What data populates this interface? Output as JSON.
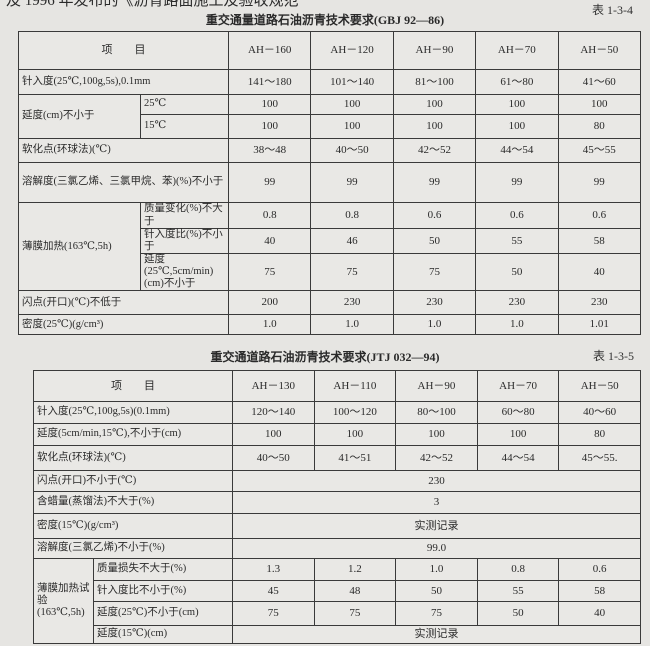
{
  "intro_text": "及 1996 年发布的《沥青路面施工及验收规范",
  "table1": {
    "number": "表 1-3-4",
    "title": "重交通量道路石油沥青技术要求(GBJ 92—86)",
    "item_header": "项　　目",
    "grades": [
      "AH－160",
      "AH－120",
      "AH－90",
      "AH－70",
      "AH－50"
    ],
    "rows": [
      {
        "label": "针入度(25℃,100g,5s),0.1mm",
        "values": [
          "141～180",
          "101～140",
          "81～100",
          "61～80",
          "41～60"
        ]
      },
      {
        "label": "延度(cm)不小于",
        "items": [
          {
            "label": "25℃",
            "values": [
              "100",
              "100",
              "100",
              "100",
              "100"
            ]
          },
          {
            "label": "15℃",
            "values": [
              "100",
              "100",
              "100",
              "100",
              "80"
            ]
          }
        ]
      },
      {
        "label": "软化点(环球法)(℃)",
        "values": [
          "38～48",
          "40～50",
          "42～52",
          "44～54",
          "45～55"
        ]
      },
      {
        "label": "溶解度(三氯乙烯、三氯甲烷、苯)(%)不小于",
        "values": [
          "99",
          "99",
          "99",
          "99",
          "99"
        ]
      },
      {
        "label": "薄膜加热(163℃,5h)",
        "items": [
          {
            "label": "质量变化(%)不大于",
            "values": [
              "0.8",
              "0.8",
              "0.6",
              "0.6",
              "0.6"
            ]
          },
          {
            "label": "针入度比(%)不小于",
            "values": [
              "40",
              "46",
              "50",
              "55",
              "58"
            ]
          },
          {
            "label": "延度(25℃,5cm/min)(cm)不小于",
            "values": [
              "75",
              "75",
              "75",
              "50",
              "40"
            ]
          }
        ]
      },
      {
        "label": "闪点(开口)(℃)不低于",
        "values": [
          "200",
          "230",
          "230",
          "230",
          "230"
        ]
      },
      {
        "label": "密度(25℃)(g/cm³)",
        "values": [
          "1.0",
          "1.0",
          "1.0",
          "1.0",
          "1.01"
        ]
      }
    ]
  },
  "table2": {
    "number": "表 1-3-5",
    "title": "重交通道路石油沥青技术要求(JTJ 032—94)",
    "item_header": "项　　目",
    "grades": [
      "AH－130",
      "AH－110",
      "AH－90",
      "AH－70",
      "AH－50"
    ],
    "rows": [
      {
        "label": "针入度(25℃,100g,5s)(0.1mm)",
        "values": [
          "120～140",
          "100～120",
          "80～100",
          "60～80",
          "40～60"
        ]
      },
      {
        "label": "延度(5cm/min,15℃),不小于(cm)",
        "values": [
          "100",
          "100",
          "100",
          "100",
          "80"
        ]
      },
      {
        "label": "软化点(环球法)(℃)",
        "values": [
          "40～50",
          "41～51",
          "42～52",
          "44～54",
          "45～55."
        ]
      },
      {
        "label": "闪点(开口)不小于(℃)",
        "value": "230"
      },
      {
        "label": "含蜡量(蒸馏法)不大于(%)",
        "value": "3"
      },
      {
        "label": "密度(15℃)(g/cm³)",
        "value": "实测记录"
      },
      {
        "label": "溶解度(三氯乙烯)不小于(%)",
        "value": "99.0"
      },
      {
        "label": "薄膜加热试验(163℃,5h)",
        "items": [
          {
            "label": "质量损失不大于(%)",
            "values": [
              "1.3",
              "1.2",
              "1.0",
              "0.8",
              "0.6"
            ]
          },
          {
            "label": "针入度比不小于(%)",
            "values": [
              "45",
              "48",
              "50",
              "55",
              "58"
            ]
          },
          {
            "label": "延度(25℃)不小于(cm)",
            "values": [
              "75",
              "75",
              "75",
              "50",
              "40"
            ]
          },
          {
            "label": "延度(15℃)(cm)",
            "value": "实测记录"
          }
        ]
      }
    ]
  }
}
